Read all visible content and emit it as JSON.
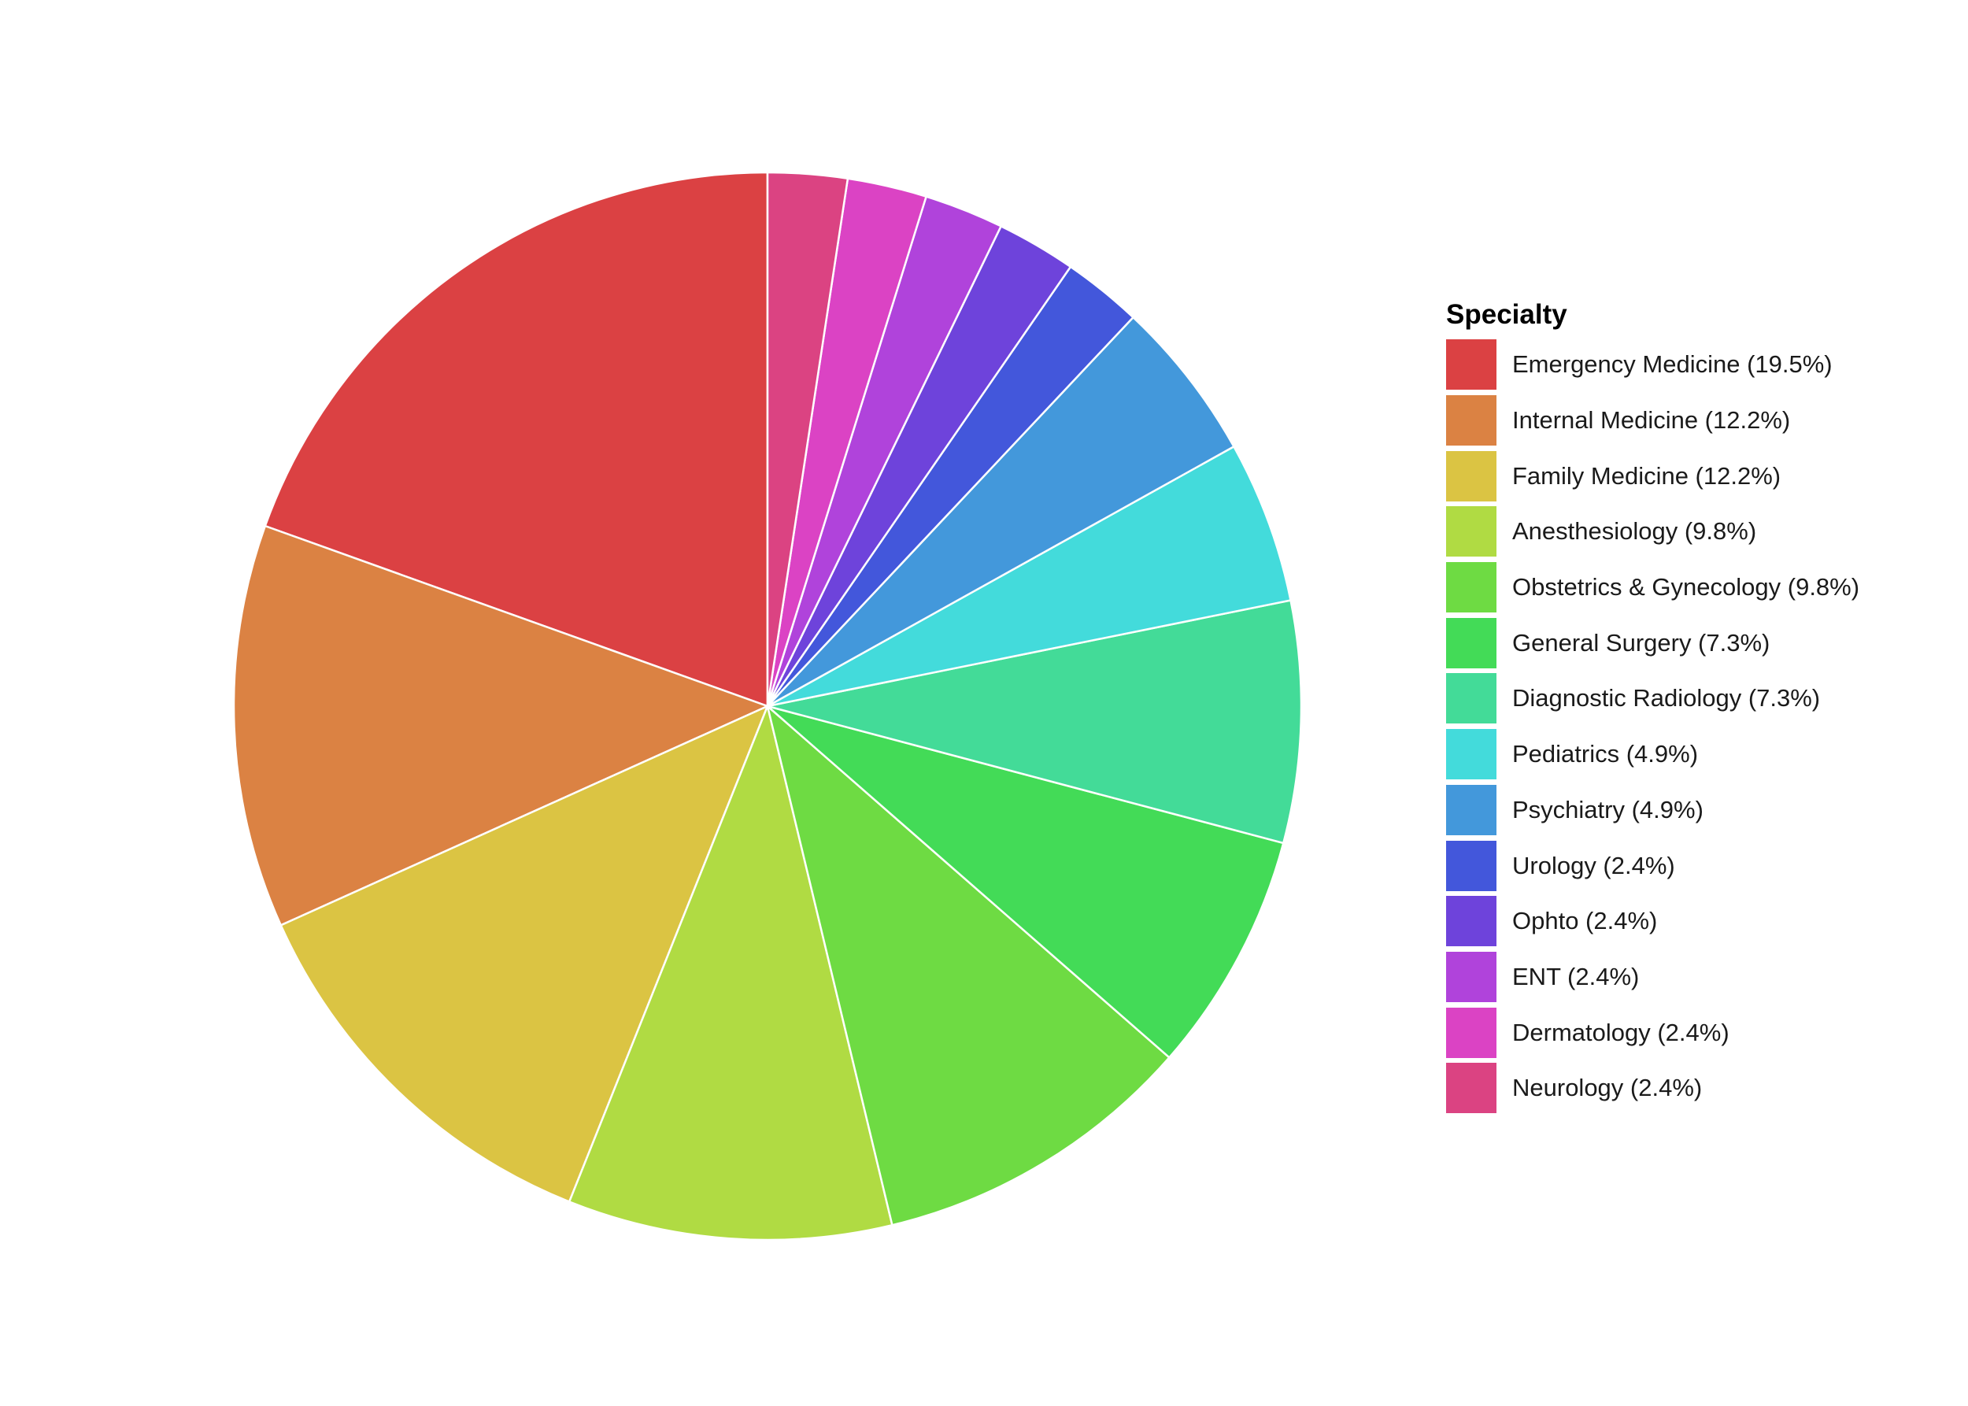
{
  "chart_data": {
    "type": "pie",
    "legend": {
      "title": "Specialty",
      "position": "right"
    },
    "slices": [
      {
        "label": "Emergency Medicine (19.5%)",
        "category": "Emergency Medicine",
        "percent": 19.5,
        "color": "#DB4143"
      },
      {
        "label": "Internal Medicine (12.2%)",
        "category": "Internal Medicine",
        "percent": 12.2,
        "color": "#DB8243"
      },
      {
        "label": "Family Medicine (12.2%)",
        "category": "Family Medicine",
        "percent": 12.2,
        "color": "#DBC443"
      },
      {
        "label": "Anesthesiology (9.8%)",
        "category": "Anesthesiology",
        "percent": 9.8,
        "color": "#B0DB43"
      },
      {
        "label": "Obstetrics & Gynecology (9.8%)",
        "category": "Obstetrics & Gynecology",
        "percent": 9.8,
        "color": "#6EDB43"
      },
      {
        "label": "General Surgery (7.3%)",
        "category": "General Surgery",
        "percent": 7.3,
        "color": "#43DB57"
      },
      {
        "label": "Diagnostic Radiology (7.3%)",
        "category": "Diagnostic Radiology",
        "percent": 7.3,
        "color": "#43DB98"
      },
      {
        "label": "Pediatrics (4.9%)",
        "category": "Pediatrics",
        "percent": 4.9,
        "color": "#43DBDB"
      },
      {
        "label": "Psychiatry (4.9%)",
        "category": "Psychiatry",
        "percent": 4.9,
        "color": "#4398DB"
      },
      {
        "label": "Urology (2.4%)",
        "category": "Urology",
        "percent": 2.4,
        "color": "#4357DB"
      },
      {
        "label": "Ophto (2.4%)",
        "category": "Ophto",
        "percent": 2.4,
        "color": "#6E43DB"
      },
      {
        "label": "ENT (2.4%)",
        "category": "ENT",
        "percent": 2.4,
        "color": "#B043DB"
      },
      {
        "label": "Dermatology (2.4%)",
        "category": "Dermatology",
        "percent": 2.4,
        "color": "#DB43C4"
      },
      {
        "label": "Neurology (2.4%)",
        "category": "Neurology",
        "percent": 2.4,
        "color": "#DB4382"
      }
    ]
  }
}
